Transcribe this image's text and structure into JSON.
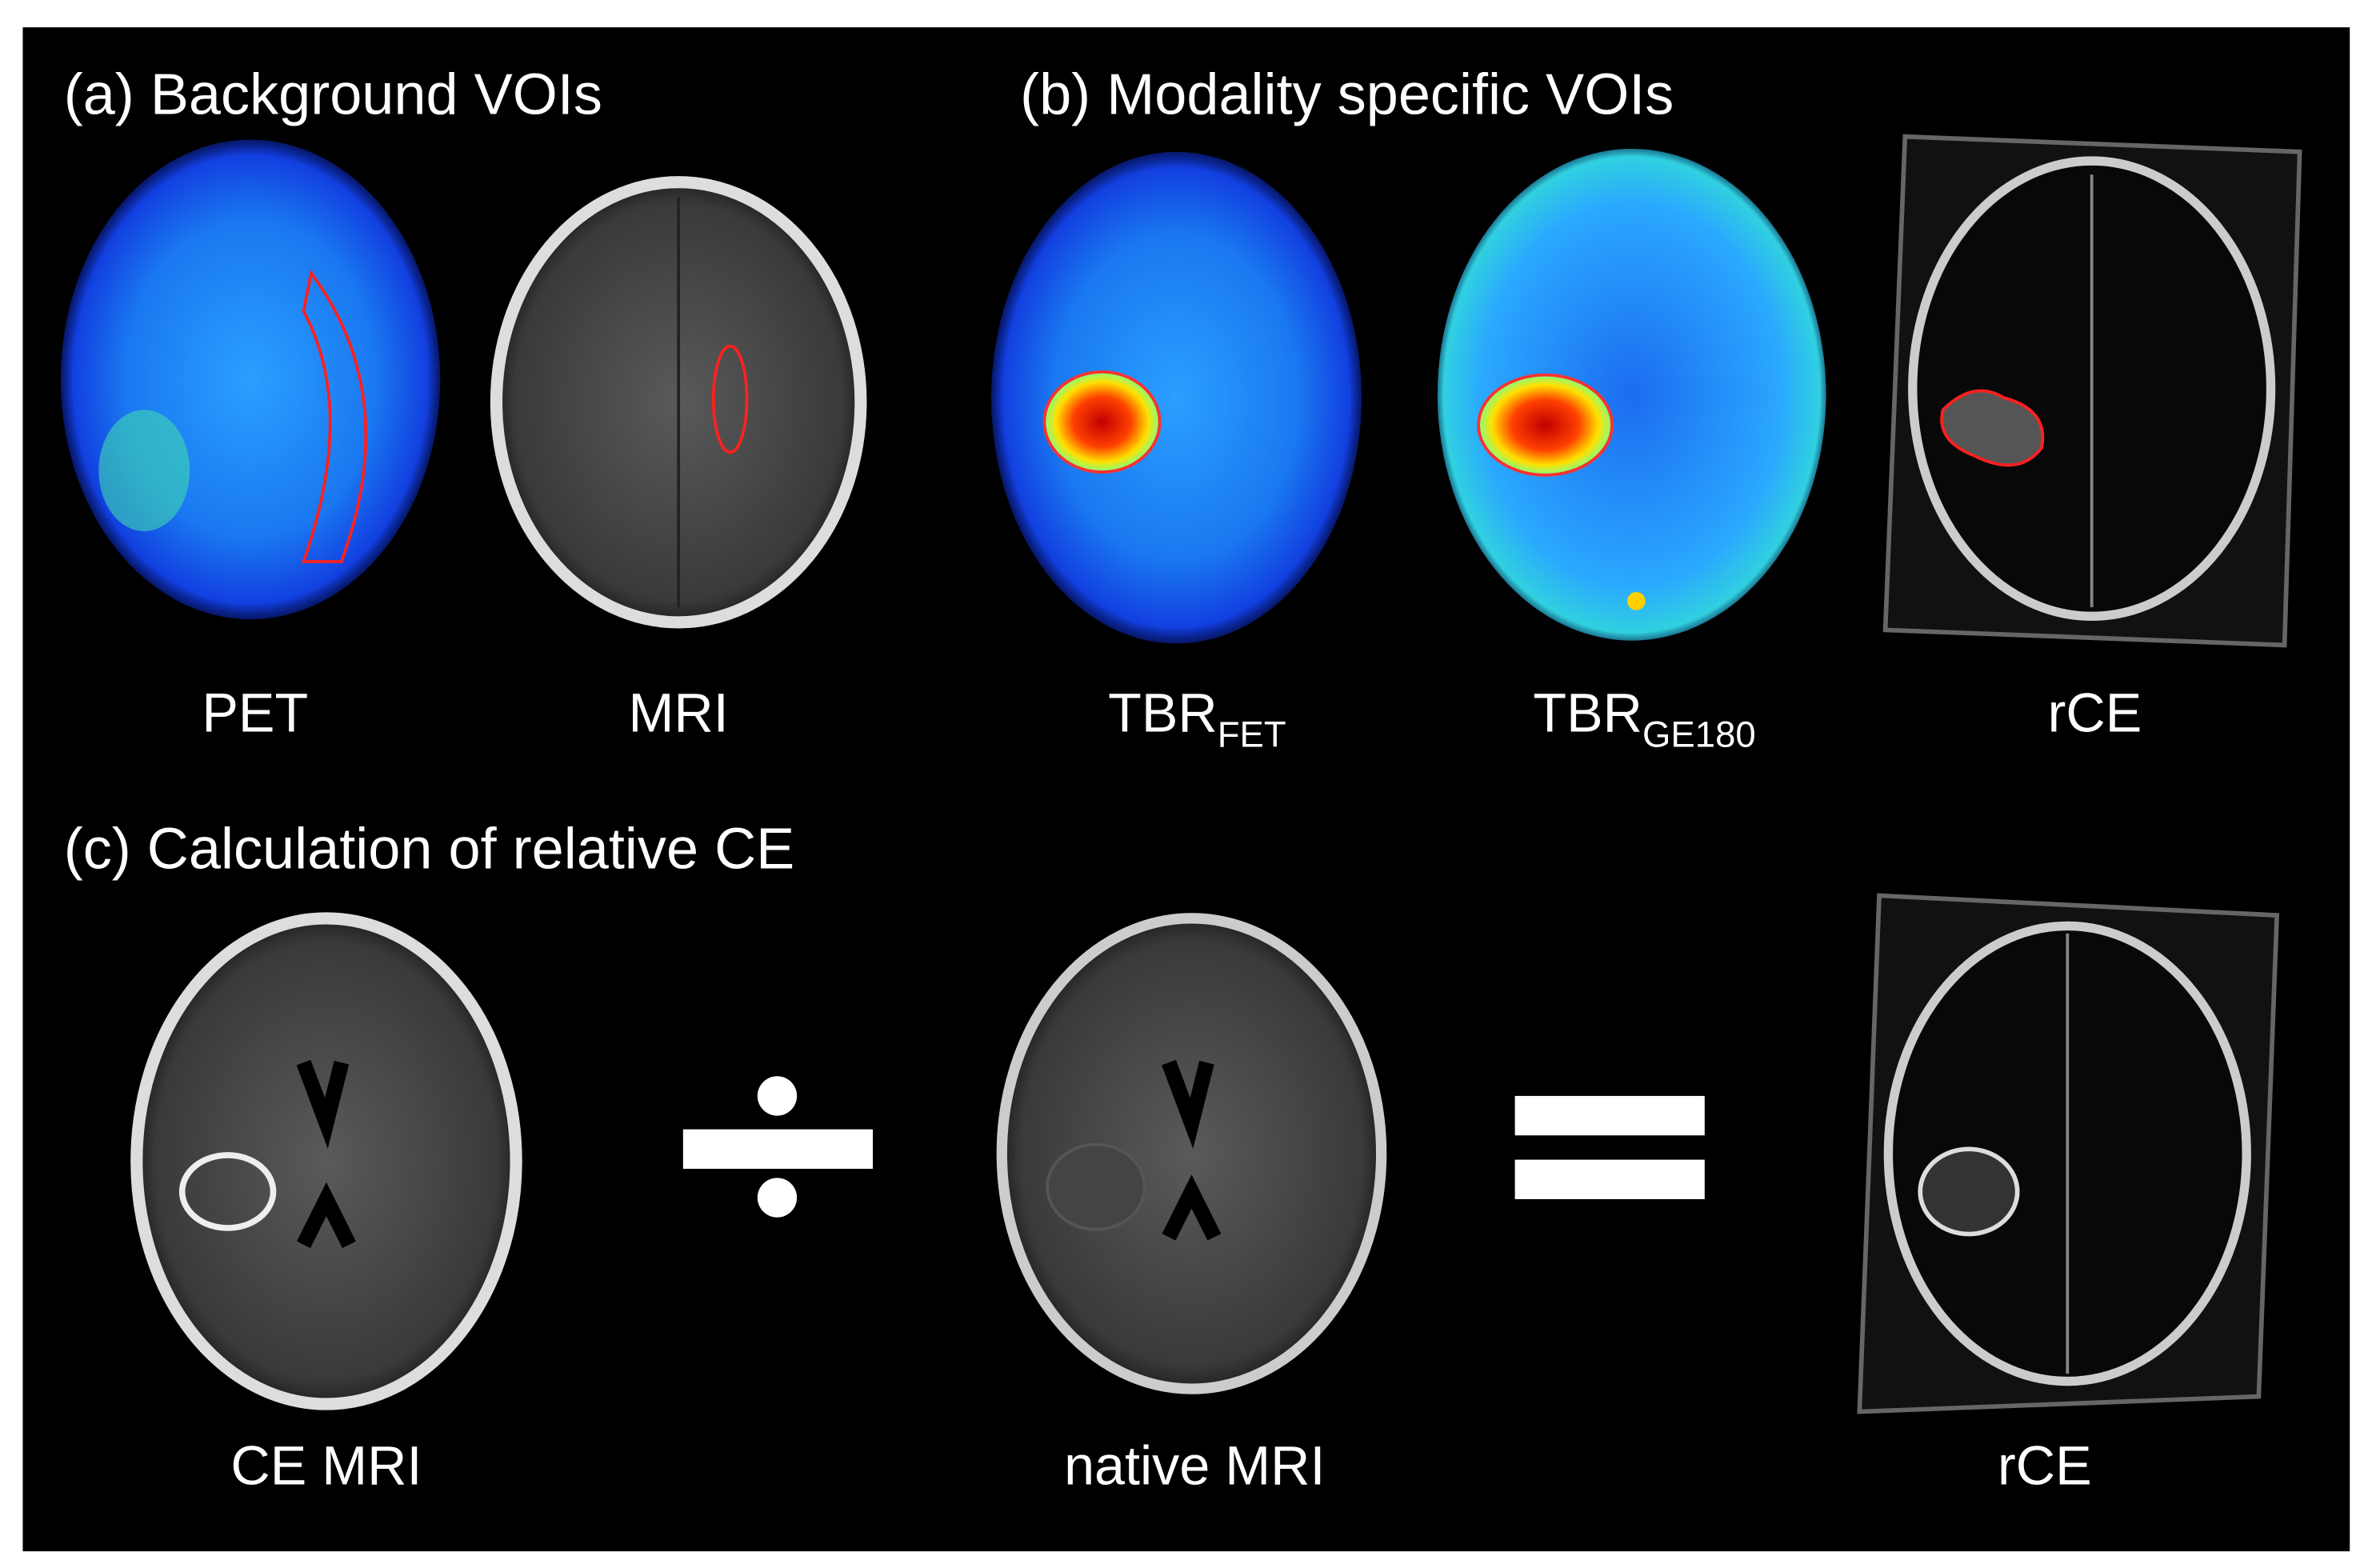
{
  "panels": {
    "a": {
      "title": "(a) Background VOIs",
      "labels": [
        "PET",
        "MRI"
      ]
    },
    "b": {
      "title": "(b) Modality specific VOIs",
      "labels": [
        {
          "main": "TBR",
          "sub": "FET"
        },
        {
          "main": "TBR",
          "sub": "GE180"
        },
        {
          "main": "rCE"
        }
      ]
    },
    "c": {
      "title": "(c) Calculation of relative CE",
      "labels": [
        "CE MRI",
        "native MRI",
        "rCE"
      ]
    }
  }
}
